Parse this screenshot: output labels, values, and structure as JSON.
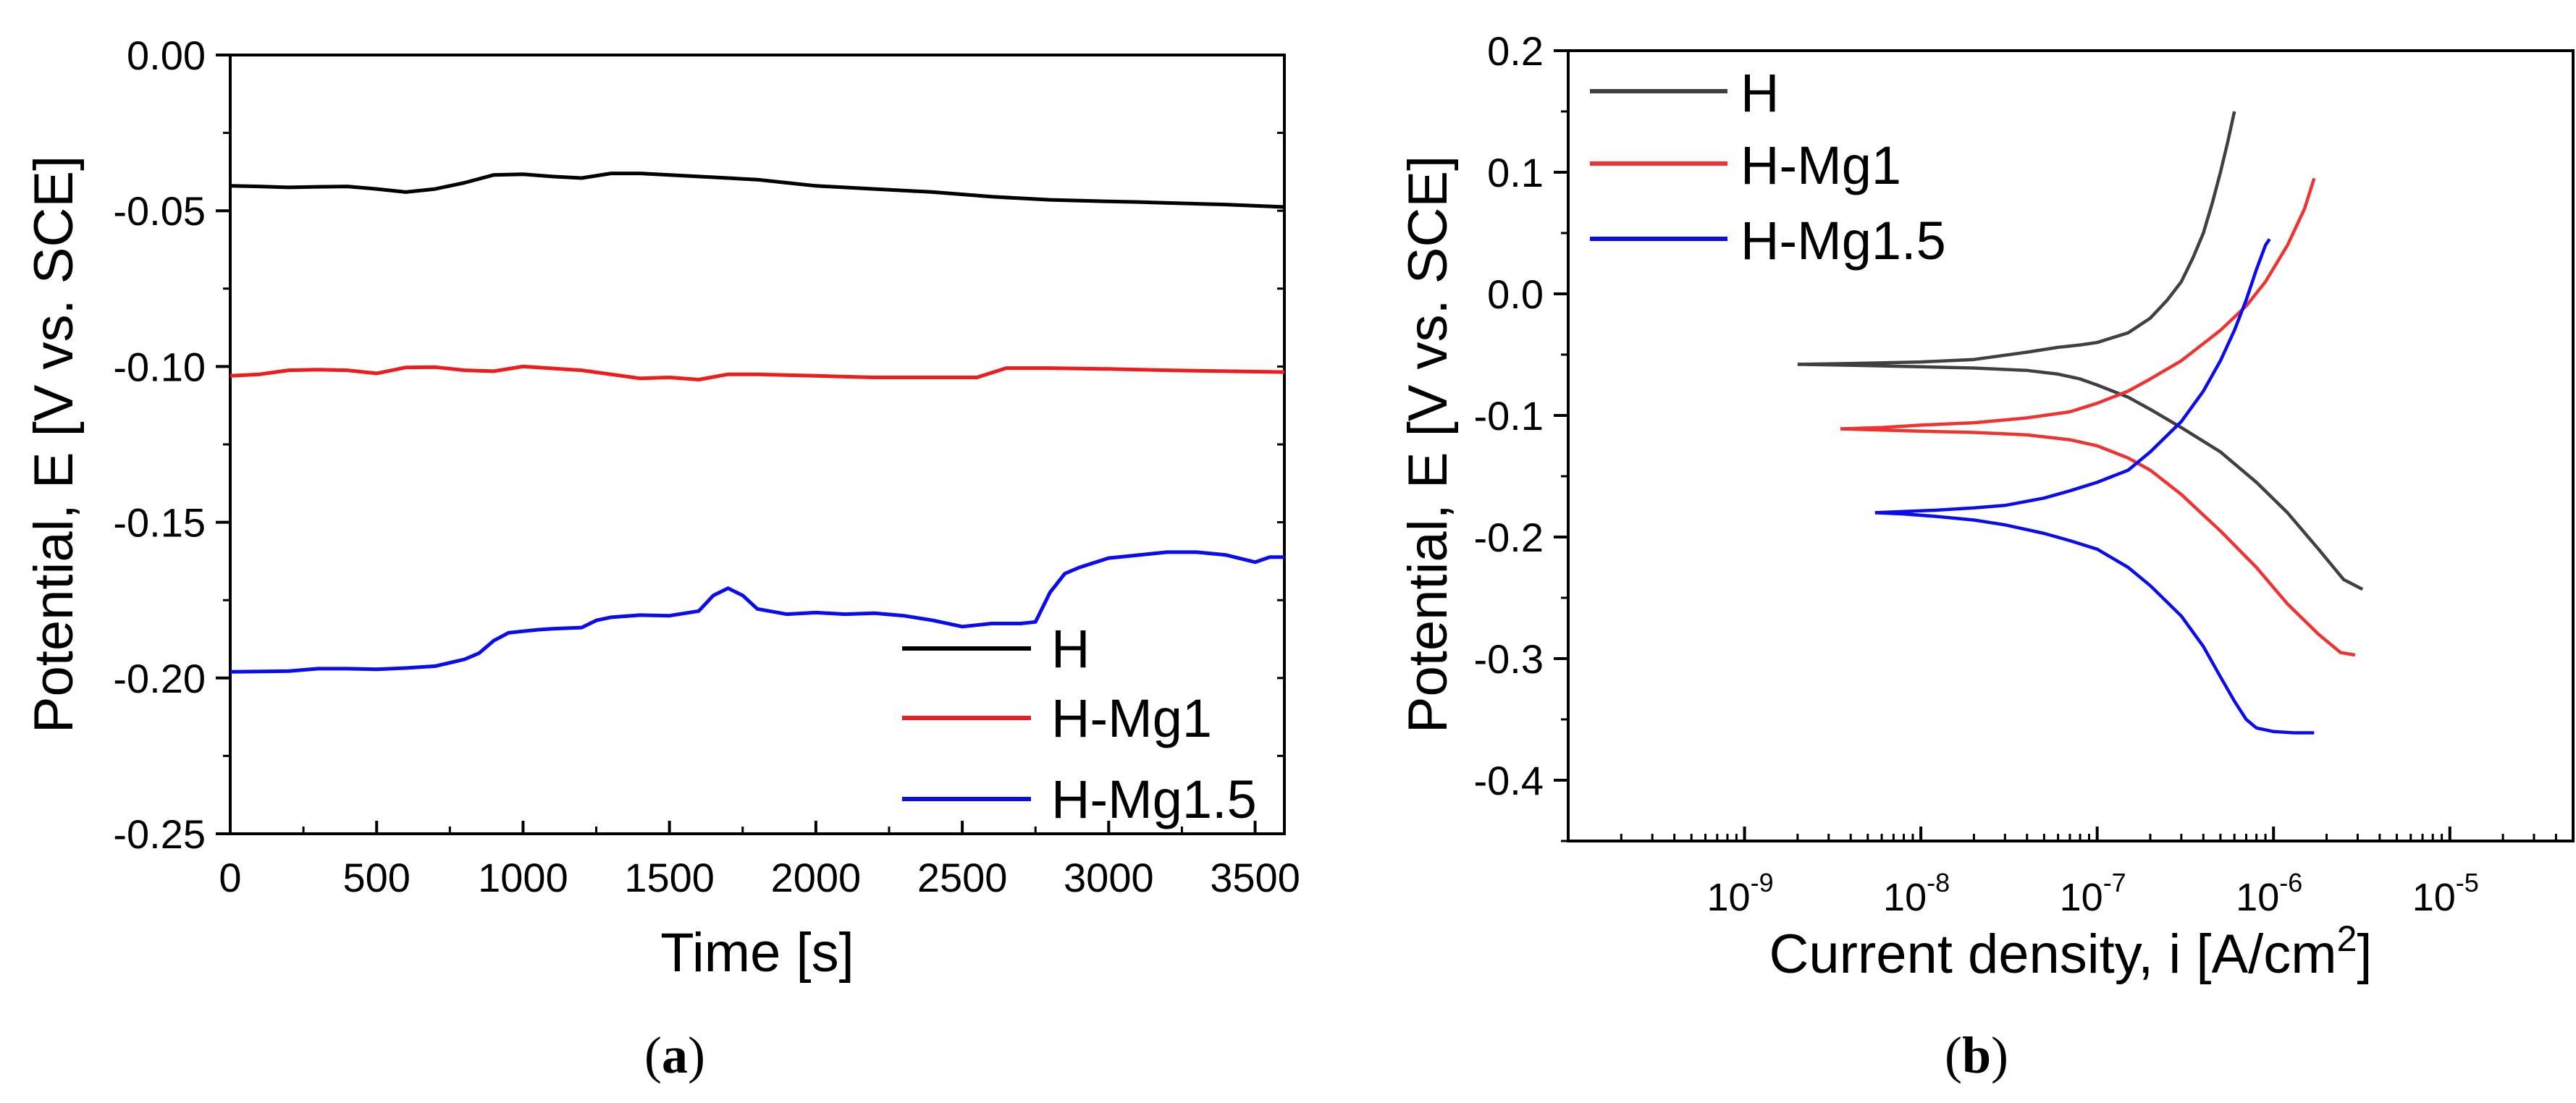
{
  "chart_data": [
    {
      "type": "line",
      "panel_label": "(a)",
      "panel_letter": "a",
      "xlabel": "Time [s]",
      "ylabel": "Potential, E [V vs. SCE]",
      "xlim": [
        0,
        3600
      ],
      "ylim": [
        -0.25,
        0.0
      ],
      "xticks": [
        0,
        500,
        1000,
        1500,
        2000,
        2500,
        3000,
        3500
      ],
      "xtick_labels": [
        "0",
        "500",
        "1000",
        "1500",
        "2000",
        "2500",
        "3000",
        "3500"
      ],
      "yticks": [
        0.0,
        -0.05,
        -0.1,
        -0.15,
        -0.2,
        -0.25
      ],
      "ytick_labels": [
        "0.00",
        "-0.05",
        "-0.10",
        "-0.15",
        "-0.20",
        "-0.25"
      ],
      "legend": "bottom-right",
      "grid": false,
      "series": [
        {
          "name": "H",
          "color": "#000000",
          "x": [
            0,
            100,
            200,
            300,
            400,
            500,
            600,
            700,
            800,
            900,
            1000,
            1100,
            1200,
            1300,
            1400,
            1500,
            1600,
            1700,
            1800,
            1900,
            2000,
            2200,
            2400,
            2600,
            2800,
            3000,
            3100,
            3200,
            3400,
            3600
          ],
          "y": [
            -0.042,
            -0.0422,
            -0.0425,
            -0.0423,
            -0.0422,
            -0.043,
            -0.044,
            -0.043,
            -0.041,
            -0.0385,
            -0.0383,
            -0.039,
            -0.0395,
            -0.038,
            -0.038,
            -0.0385,
            -0.039,
            -0.0395,
            -0.04,
            -0.041,
            -0.042,
            -0.043,
            -0.044,
            -0.0455,
            -0.0465,
            -0.047,
            -0.0472,
            -0.0475,
            -0.048,
            -0.0488
          ]
        },
        {
          "name": "H-Mg1",
          "color": "#ee1c1c",
          "x": [
            0,
            100,
            200,
            300,
            400,
            500,
            600,
            700,
            800,
            900,
            1000,
            1200,
            1400,
            1500,
            1600,
            1700,
            1800,
            2000,
            2200,
            2400,
            2550,
            2650,
            2800,
            3000,
            3200,
            3400,
            3600
          ],
          "y": [
            -0.103,
            -0.1025,
            -0.1012,
            -0.101,
            -0.1012,
            -0.1022,
            -0.1003,
            -0.1002,
            -0.1012,
            -0.1015,
            -0.1,
            -0.1012,
            -0.1038,
            -0.1035,
            -0.1042,
            -0.1025,
            -0.1025,
            -0.103,
            -0.1035,
            -0.1035,
            -0.1035,
            -0.1005,
            -0.1005,
            -0.1008,
            -0.1012,
            -0.1015,
            -0.1018
          ]
        },
        {
          "name": "H-Mg1.5",
          "color": "#0b0bf0",
          "x": [
            0,
            200,
            300,
            400,
            500,
            600,
            700,
            800,
            850,
            900,
            950,
            1000,
            1050,
            1100,
            1200,
            1250,
            1300,
            1400,
            1500,
            1600,
            1650,
            1700,
            1750,
            1800,
            1900,
            2000,
            2100,
            2200,
            2300,
            2400,
            2500,
            2600,
            2700,
            2750,
            2800,
            2850,
            2900,
            3000,
            3200,
            3300,
            3400,
            3500,
            3550,
            3600
          ],
          "y": [
            -0.198,
            -0.1978,
            -0.197,
            -0.197,
            -0.1972,
            -0.1968,
            -0.1962,
            -0.194,
            -0.192,
            -0.188,
            -0.1855,
            -0.185,
            -0.1845,
            -0.1842,
            -0.1838,
            -0.1815,
            -0.1805,
            -0.1798,
            -0.18,
            -0.1785,
            -0.1735,
            -0.1712,
            -0.1735,
            -0.1778,
            -0.1795,
            -0.179,
            -0.1795,
            -0.1792,
            -0.18,
            -0.1815,
            -0.1835,
            -0.1825,
            -0.1825,
            -0.182,
            -0.1725,
            -0.1665,
            -0.1645,
            -0.1615,
            -0.1596,
            -0.1596,
            -0.1605,
            -0.1628,
            -0.1612,
            -0.1612
          ]
        }
      ]
    },
    {
      "type": "line",
      "panel_label": "(b)",
      "panel_letter": "b",
      "xlabel": "Current density, i [A/cm",
      "xlabel_superscript": "2",
      "xlabel_suffix": "]",
      "ylabel": "Potential, E [V vs. SCE]",
      "xscale": "log",
      "xlim": [
        1e-10,
        5e-05
      ],
      "ylim": [
        -0.45,
        0.2
      ],
      "xticks": [
        1e-09,
        1e-08,
        1e-07,
        1e-06,
        1e-05
      ],
      "xtick_labels": [
        "10",
        "10",
        "10",
        "10",
        "10"
      ],
      "xtick_exponents": [
        "-9",
        "-8",
        "-7",
        "-6",
        "-5"
      ],
      "yticks": [
        0.2,
        0.1,
        0.0,
        -0.1,
        -0.2,
        -0.3,
        -0.4
      ],
      "ytick_labels": [
        "0.2",
        "0.1",
        "0.0",
        "-0.1",
        "-0.2",
        "-0.3",
        "-0.4"
      ],
      "legend": "top-left",
      "grid": false,
      "series": [
        {
          "name": "H",
          "color": "#404040",
          "branches": [
            {
              "x": [
                2e-09,
                5e-09,
                1e-08,
                2e-08,
                4e-08,
                6e-08,
                8e-08,
                1e-07,
                1.5e-07,
                2e-07,
                3e-07,
                5e-07,
                8e-07,
                1.2e-06,
                1.8e-06,
                2.5e-06,
                3.2e-06
              ],
              "y": [
                -0.058,
                -0.059,
                -0.06,
                -0.061,
                -0.063,
                -0.066,
                -0.07,
                -0.075,
                -0.085,
                -0.095,
                -0.11,
                -0.13,
                -0.155,
                -0.18,
                -0.21,
                -0.235,
                -0.243
              ]
            },
            {
              "x": [
                2e-09,
                5e-09,
                1e-08,
                2e-08,
                4e-08,
                6e-08,
                8e-08,
                1e-07,
                1.5e-07,
                2e-07,
                2.5e-07,
                3e-07,
                3.5e-07,
                4e-07,
                4.5e-07,
                5e-07,
                5.5e-07,
                6e-07
              ],
              "y": [
                -0.058,
                -0.057,
                -0.056,
                -0.054,
                -0.048,
                -0.044,
                -0.042,
                -0.04,
                -0.032,
                -0.02,
                -0.005,
                0.01,
                0.03,
                0.05,
                0.075,
                0.1,
                0.125,
                0.15
              ]
            }
          ]
        },
        {
          "name": "H-Mg1",
          "color": "#ee3333",
          "branches": [
            {
              "x": [
                3.5e-09,
                6e-09,
                1e-08,
                2e-08,
                4e-08,
                7e-08,
                1e-07,
                1.5e-07,
                2e-07,
                3e-07,
                5e-07,
                8e-07,
                1.2e-06,
                1.8e-06,
                2.4e-06,
                2.9e-06
              ],
              "y": [
                -0.111,
                -0.112,
                -0.113,
                -0.114,
                -0.116,
                -0.12,
                -0.125,
                -0.135,
                -0.145,
                -0.165,
                -0.195,
                -0.225,
                -0.255,
                -0.28,
                -0.295,
                -0.297
              ]
            },
            {
              "x": [
                3.5e-09,
                6e-09,
                1e-08,
                2e-08,
                4e-08,
                7e-08,
                1e-07,
                1.5e-07,
                2e-07,
                3e-07,
                5e-07,
                7e-07,
                9e-07,
                1.2e-06,
                1.5e-06,
                1.7e-06
              ],
              "y": [
                -0.111,
                -0.11,
                -0.108,
                -0.106,
                -0.102,
                -0.097,
                -0.09,
                -0.08,
                -0.07,
                -0.055,
                -0.03,
                -0.01,
                0.01,
                0.04,
                0.07,
                0.095
              ]
            }
          ]
        },
        {
          "name": "H-Mg1.5",
          "color": "#0b0bf0",
          "branches": [
            {
              "x": [
                5.5e-09,
                8e-09,
                1.2e-08,
                2e-08,
                3e-08,
                5e-08,
                7e-08,
                1e-07,
                1.5e-07,
                2e-07,
                3e-07,
                4e-07,
                5e-07,
                6e-07,
                7e-07,
                8e-07,
                1e-06,
                1.3e-06,
                1.7e-06
              ],
              "y": [
                -0.18,
                -0.181,
                -0.183,
                -0.186,
                -0.19,
                -0.197,
                -0.203,
                -0.21,
                -0.225,
                -0.24,
                -0.265,
                -0.29,
                -0.315,
                -0.335,
                -0.35,
                -0.357,
                -0.36,
                -0.361,
                -0.361
              ]
            },
            {
              "x": [
                5.5e-09,
                8e-09,
                1.2e-08,
                2e-08,
                3e-08,
                5e-08,
                7e-08,
                1e-07,
                1.5e-07,
                2e-07,
                3e-07,
                4e-07,
                5e-07,
                6e-07,
                7e-07,
                8e-07,
                9e-07,
                9.5e-07
              ],
              "y": [
                -0.18,
                -0.179,
                -0.178,
                -0.176,
                -0.174,
                -0.168,
                -0.162,
                -0.155,
                -0.145,
                -0.13,
                -0.105,
                -0.08,
                -0.055,
                -0.03,
                -0.005,
                0.02,
                0.04,
                0.045
              ]
            }
          ]
        }
      ]
    }
  ]
}
